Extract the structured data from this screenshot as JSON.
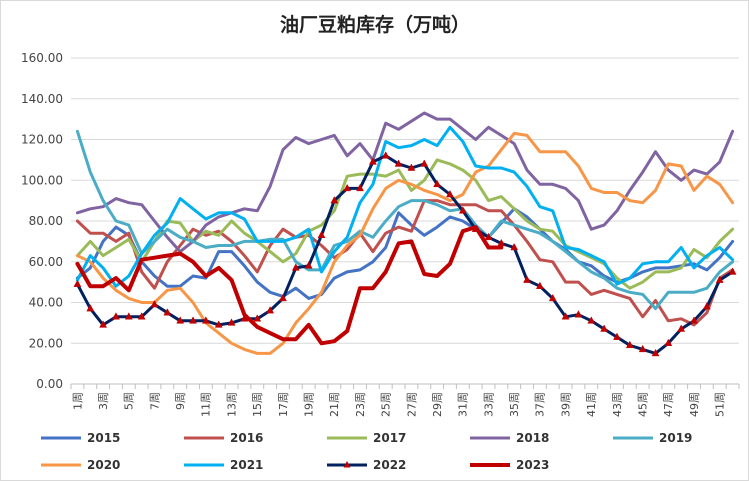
{
  "chart_data": {
    "type": "line",
    "title": "油厂豆粕库存（万吨）",
    "xlabel": "",
    "ylabel": "",
    "ylim": [
      0,
      160
    ],
    "yticks": [
      "0.00",
      "20.00",
      "40.00",
      "60.00",
      "80.00",
      "100.00",
      "120.00",
      "140.00",
      "160.00"
    ],
    "categories": [
      "1周",
      "2周",
      "3周",
      "4周",
      "5周",
      "6周",
      "7周",
      "8周",
      "9周",
      "10周",
      "11周",
      "12周",
      "13周",
      "14周",
      "15周",
      "16周",
      "17周",
      "18周",
      "19周",
      "20周",
      "21周",
      "22周",
      "23周",
      "24周",
      "25周",
      "26周",
      "27周",
      "28周",
      "29周",
      "30周",
      "31周",
      "32周",
      "33周",
      "34周",
      "35周",
      "36周",
      "37周",
      "38周",
      "39周",
      "40周",
      "41周",
      "42周",
      "43周",
      "44周",
      "45周",
      "46周",
      "47周",
      "48周",
      "49周",
      "50周",
      "51周",
      "52周"
    ],
    "xtick_labels": [
      "1周",
      "3周",
      "5周",
      "7周",
      "9周",
      "11周",
      "13周",
      "15周",
      "17周",
      "19周",
      "21周",
      "23周",
      "25周",
      "27周",
      "29周",
      "31周",
      "33周",
      "35周",
      "37周",
      "39周",
      "41周",
      "43周",
      "45周",
      "47周",
      "49周",
      "51周"
    ],
    "grid": true,
    "legend_position": "bottom",
    "series": [
      {
        "name": "2015",
        "color": "#4472C4",
        "width": 3,
        "marker": "none",
        "values": [
          52,
          57,
          70,
          77,
          73,
          60,
          53,
          48,
          48,
          53,
          52,
          65,
          65,
          58,
          50,
          45,
          43,
          47,
          42,
          44,
          52,
          55,
          56,
          60,
          67,
          84,
          78,
          73,
          77,
          82,
          80,
          76,
          72,
          79,
          86,
          82,
          76,
          70,
          66,
          60,
          58,
          53,
          50,
          52,
          55,
          57,
          57,
          58,
          59,
          56,
          62,
          70
        ]
      },
      {
        "name": "2016",
        "color": "#C0504D",
        "width": 3,
        "marker": "none",
        "values": [
          80,
          74,
          74,
          70,
          74,
          55,
          47,
          60,
          68,
          76,
          73,
          75,
          70,
          63,
          55,
          68,
          76,
          72,
          73,
          68,
          62,
          66,
          74,
          65,
          74,
          77,
          75,
          90,
          90,
          88,
          88,
          88,
          85,
          85,
          78,
          70,
          61,
          60,
          50,
          50,
          44,
          46,
          44,
          42,
          33,
          41,
          31,
          32,
          29,
          35,
          52,
          56
        ]
      },
      {
        "name": "2017",
        "color": "#9BBB59",
        "width": 3,
        "marker": "none",
        "values": [
          63,
          70,
          63,
          67,
          71,
          60,
          70,
          80,
          79,
          70,
          75,
          73,
          80,
          74,
          70,
          65,
          60,
          64,
          75,
          78,
          85,
          102,
          103,
          103,
          102,
          105,
          95,
          100,
          110,
          108,
          105,
          100,
          90,
          92,
          86,
          80,
          76,
          75,
          68,
          65,
          62,
          59,
          52,
          47,
          50,
          55,
          55,
          57,
          66,
          62,
          70,
          76
        ]
      },
      {
        "name": "2018",
        "color": "#8064A2",
        "width": 3,
        "marker": "none",
        "values": [
          84,
          86,
          87,
          91,
          89,
          88,
          80,
          72,
          65,
          70,
          78,
          82,
          84,
          86,
          85,
          97,
          115,
          121,
          118,
          120,
          122,
          112,
          118,
          110,
          128,
          125,
          129,
          133,
          130,
          130,
          125,
          120,
          126,
          122,
          118,
          105,
          98,
          98,
          96,
          90,
          76,
          78,
          85,
          95,
          104,
          114,
          105,
          100,
          105,
          103,
          109,
          124
        ]
      },
      {
        "name": "2019",
        "color": "#4BACC6",
        "width": 3,
        "marker": "none",
        "values": [
          124,
          104,
          90,
          80,
          78,
          64,
          70,
          76,
          72,
          70,
          67,
          68,
          68,
          70,
          70,
          71,
          71,
          60,
          56,
          56,
          68,
          70,
          75,
          72,
          80,
          87,
          90,
          90,
          88,
          85,
          86,
          78,
          72,
          80,
          78,
          76,
          74,
          70,
          65,
          60,
          55,
          52,
          47,
          45,
          44,
          37,
          45,
          45,
          45,
          47,
          55,
          60
        ]
      },
      {
        "name": "2020",
        "color": "#F79646",
        "width": 3,
        "marker": "none",
        "values": [
          63,
          60,
          52,
          46,
          42,
          40,
          40,
          46,
          47,
          40,
          30,
          25,
          20,
          17,
          15,
          15,
          20,
          30,
          37,
          45,
          60,
          68,
          73,
          86,
          96,
          100,
          98,
          95,
          93,
          90,
          93,
          104,
          107,
          115,
          123,
          122,
          114,
          114,
          114,
          107,
          96,
          94,
          94,
          90,
          89,
          95,
          108,
          107,
          95,
          102,
          98,
          89
        ]
      },
      {
        "name": "2021",
        "color": "#00B0F0",
        "width": 3,
        "marker": "none",
        "values": [
          51,
          63,
          57,
          48,
          53,
          64,
          73,
          79,
          91,
          86,
          81,
          84,
          84,
          81,
          70,
          70,
          70,
          72,
          76,
          55,
          65,
          72,
          89,
          98,
          119,
          116,
          117,
          120,
          117,
          126,
          119,
          107,
          106,
          106,
          104,
          97,
          87,
          85,
          67,
          66,
          63,
          60,
          49,
          52,
          59,
          60,
          60,
          67,
          57,
          63,
          67,
          61
        ]
      },
      {
        "name": "2022",
        "color": "#002060",
        "width": 3,
        "marker": "triangle",
        "values": [
          49,
          37,
          29,
          33,
          33,
          33,
          39,
          35,
          31,
          31,
          31,
          29,
          30,
          32,
          32,
          36,
          42,
          57,
          58,
          73,
          90,
          96,
          96,
          109,
          112,
          108,
          106,
          108,
          98,
          93,
          85,
          76,
          72,
          69,
          67,
          51,
          48,
          42,
          33,
          34,
          31,
          27,
          23,
          19,
          17,
          15,
          20,
          27,
          31,
          38,
          51,
          55
        ]
      },
      {
        "name": "2023",
        "color": "#C00000",
        "width": 4,
        "marker": "none",
        "values": [
          59,
          48,
          48,
          52,
          46,
          61,
          62,
          63,
          64,
          60,
          53,
          57,
          51,
          34,
          28,
          25,
          22,
          22,
          29,
          20,
          21,
          26,
          47,
          47,
          55,
          69,
          70,
          54,
          53,
          59,
          75,
          77,
          67,
          67,
          null,
          null,
          null,
          null,
          null,
          null,
          null,
          null,
          null,
          null,
          null,
          null,
          null,
          null,
          null,
          null,
          null,
          null
        ]
      }
    ]
  }
}
